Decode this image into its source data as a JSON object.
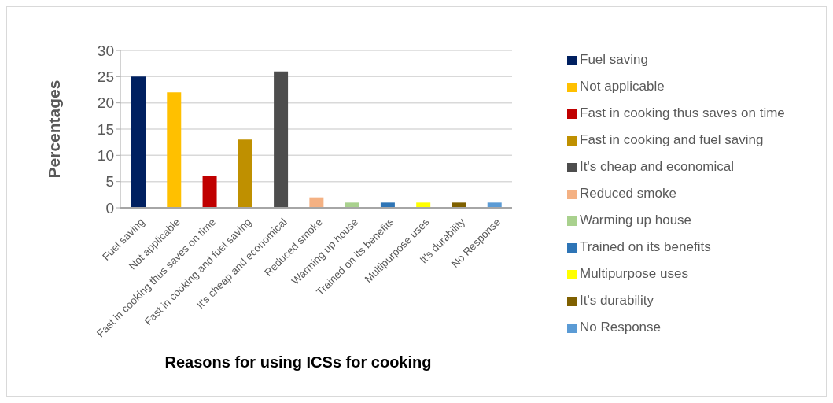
{
  "chart_data": {
    "type": "bar",
    "xlabel": "Reasons for using ICSs for cooking",
    "ylabel": "Percentages",
    "categories": [
      "Fuel saving",
      "Not applicable",
      "Fast in cooking thus saves on time",
      "Fast in cooking and fuel saving",
      "It's cheap and economical",
      "Reduced smoke",
      "Warming up house",
      "Trained on its benefits",
      "Multipurpose uses",
      "It's durability",
      "No Response"
    ],
    "series": [
      {
        "name": "Fuel saving",
        "color": "#002060",
        "values": [
          25,
          null,
          null,
          null,
          null,
          null,
          null,
          null,
          null,
          null,
          null
        ]
      },
      {
        "name": "Not applicable",
        "color": "#ffc000",
        "values": [
          null,
          22,
          null,
          null,
          null,
          null,
          null,
          null,
          null,
          null,
          null
        ]
      },
      {
        "name": "Fast in cooking thus saves on time",
        "color": "#c00000",
        "values": [
          null,
          null,
          6,
          null,
          null,
          null,
          null,
          null,
          null,
          null,
          null
        ]
      },
      {
        "name": "Fast in cooking and fuel saving",
        "color": "#bf9000",
        "values": [
          null,
          null,
          null,
          13,
          null,
          null,
          null,
          null,
          null,
          null,
          null
        ]
      },
      {
        "name": "It's cheap and economical",
        "color": "#4d4d4d",
        "values": [
          null,
          null,
          null,
          null,
          26,
          null,
          null,
          null,
          null,
          null,
          null
        ]
      },
      {
        "name": "Reduced smoke",
        "color": "#f4b183",
        "values": [
          null,
          null,
          null,
          null,
          null,
          2,
          null,
          null,
          null,
          null,
          null
        ]
      },
      {
        "name": "Warming up house",
        "color": "#a9d18e",
        "values": [
          null,
          null,
          null,
          null,
          null,
          null,
          1,
          null,
          null,
          null,
          null
        ]
      },
      {
        "name": "Trained on its benefits",
        "color": "#2e75b6",
        "values": [
          null,
          null,
          null,
          null,
          null,
          null,
          null,
          1,
          null,
          null,
          null
        ]
      },
      {
        "name": "Multipurpose uses",
        "color": "#ffff00",
        "values": [
          null,
          null,
          null,
          null,
          null,
          null,
          null,
          null,
          1,
          null,
          null
        ]
      },
      {
        "name": "It's durability",
        "color": "#7f6000",
        "values": [
          null,
          null,
          null,
          null,
          null,
          null,
          null,
          null,
          null,
          1,
          null
        ]
      },
      {
        "name": "No Response",
        "color": "#5b9bd5",
        "values": [
          null,
          null,
          null,
          null,
          null,
          null,
          null,
          null,
          null,
          null,
          1
        ]
      }
    ],
    "stacked": true,
    "ylim": [
      0,
      30
    ],
    "yticks": [
      0,
      5,
      10,
      15,
      20,
      25,
      30
    ],
    "grid": "y",
    "legend": "right"
  }
}
